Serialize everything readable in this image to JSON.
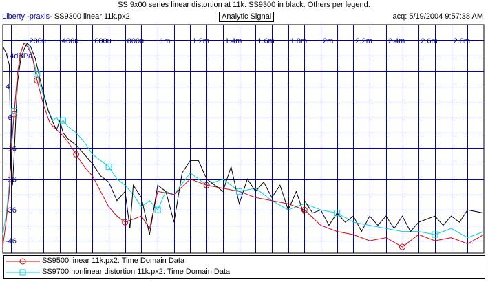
{
  "header": {
    "title": "SS 9x00 series linear distortion at 11k. SS9300 in black. Others per legend.",
    "brand": "Liberty -praxis-",
    "file": "SS9300 linear 11k.px2",
    "mode_button": "Analytic Signal",
    "acquired": "acq: 5/19/2004 9:57:38 AM"
  },
  "colors": {
    "grid": "#0000c0",
    "tick_labels": "#000080",
    "series_black": "#000000",
    "series_red": "#e00000",
    "series_cyan": "#00d0e0"
  },
  "chart_data": {
    "type": "line",
    "title": "",
    "xlabel": "",
    "ylabel": "",
    "xlim": [
      5e-05,
      0.003
    ],
    "ylim": [
      -50,
      24
    ],
    "x_ticks": [
      {
        "v": 0.0002,
        "label": "200u"
      },
      {
        "v": 0.0004,
        "label": "400u"
      },
      {
        "v": 0.0006,
        "label": "600u"
      },
      {
        "v": 0.0008,
        "label": "800u"
      },
      {
        "v": 0.001,
        "label": "1m"
      },
      {
        "v": 0.0012,
        "label": "1.2m"
      },
      {
        "v": 0.0014,
        "label": "1.4m"
      },
      {
        "v": 0.0016,
        "label": "1.6m"
      },
      {
        "v": 0.0018,
        "label": "1.8m"
      },
      {
        "v": 0.002,
        "label": "2m"
      },
      {
        "v": 0.0022,
        "label": "2.2m"
      },
      {
        "v": 0.0024,
        "label": "2.4m"
      },
      {
        "v": 0.0026,
        "label": "2.6m"
      },
      {
        "v": 0.0028,
        "label": "2.8m"
      }
    ],
    "y_ticks": [
      {
        "v": 14,
        "label": "14dBPa"
      },
      {
        "v": 4,
        "label": "4"
      },
      {
        "v": -6,
        "label": "-6"
      },
      {
        "v": -16,
        "label": "-16"
      },
      {
        "v": -26,
        "label": "-26"
      },
      {
        "v": -36,
        "label": "-36"
      },
      {
        "v": -46,
        "label": "-46"
      }
    ],
    "series": [
      {
        "name": "SS9300 linear 11k.px2",
        "color": "#000000",
        "marker": "none",
        "x": [
          5e-05,
          7e-05,
          9e-05,
          0.0001,
          0.00011,
          0.00012,
          0.00013,
          0.00014,
          0.00016,
          0.00018,
          0.0002,
          0.00022,
          0.00025,
          0.00028,
          0.0003,
          0.00033,
          0.00036,
          0.00038,
          0.0004,
          0.00042,
          0.00045,
          0.0005,
          0.00055,
          0.0006,
          0.00065,
          0.0007,
          0.00075,
          0.0008,
          0.00083,
          0.00085,
          0.0009,
          0.00095,
          0.001,
          0.00105,
          0.0011,
          0.00115,
          0.0012,
          0.00125,
          0.0013,
          0.0014,
          0.00145,
          0.0015,
          0.00155,
          0.0016,
          0.00165,
          0.0017,
          0.00175,
          0.0018,
          0.00185,
          0.0019,
          0.0019,
          0.00195,
          0.002,
          0.00205,
          0.0021,
          0.00215,
          0.0022,
          0.00225,
          0.0023,
          0.00235,
          0.0024,
          0.00245,
          0.0025,
          0.00255,
          0.0026,
          0.00265,
          0.0027,
          0.00275,
          0.0028,
          0.00285,
          0.0029,
          0.003
        ],
        "y": [
          17,
          15,
          11,
          -22,
          -28,
          -18,
          -6,
          5,
          13,
          16,
          18,
          17,
          13,
          6,
          2,
          -4,
          -8,
          -10,
          -7,
          -11,
          -13,
          -15,
          -18,
          -21,
          -25,
          -27,
          -33,
          -30,
          -42,
          -28,
          -32,
          -44,
          -28,
          -30,
          -40,
          -24,
          -20,
          -20,
          -26,
          -30,
          -22,
          -34,
          -26,
          -30,
          -27,
          -32,
          -28,
          -36,
          -30,
          -38,
          -33,
          -37,
          -36,
          -41,
          -37,
          -40,
          -38,
          -43,
          -38,
          -41,
          -38,
          -42,
          -38,
          -43,
          -40,
          -39,
          -38,
          -41,
          -38,
          -40,
          -36,
          -37
        ]
      },
      {
        "name": "SS9500 linear 11k.px2:  Time Domain Data",
        "color": "#e00000",
        "marker": "circle",
        "x": [
          5e-05,
          7e-05,
          9e-05,
          0.0001,
          0.00012,
          0.00014,
          0.00016,
          0.00018,
          0.0002,
          0.00023,
          0.00026,
          0.0003,
          0.00034,
          0.00038,
          0.00042,
          0.00045,
          0.0005,
          0.00055,
          0.0006,
          0.00065,
          0.0007,
          0.00075,
          0.0008,
          0.0009,
          0.00095,
          0.001,
          0.0011,
          0.0012,
          0.0013,
          0.0014,
          0.0015,
          0.0016,
          0.0017,
          0.0018,
          0.0019,
          0.002,
          0.0021,
          0.0022,
          0.0023,
          0.0024,
          0.0025,
          0.0026,
          0.0027,
          0.0028,
          0.0029,
          0.003
        ],
        "y": [
          -48,
          -40,
          -30,
          -18,
          -5,
          8,
          15,
          18,
          17,
          14,
          6,
          -2,
          -8,
          -10,
          -12,
          -14,
          -18,
          -22,
          -25,
          -30,
          -35,
          -38,
          -40,
          -38,
          -42,
          -30,
          -31,
          -26,
          -28,
          -29,
          -30,
          -32,
          -33,
          -34,
          -36,
          -41,
          -43,
          -44,
          -46,
          -45,
          -48,
          -44,
          -46,
          -45,
          -47,
          -44
        ]
      },
      {
        "name": "SS9700 nonlinear distortion 11k.px2:  Time Domain Data",
        "color": "#00d0e0",
        "marker": "square",
        "x": [
          5e-05,
          7e-05,
          9e-05,
          0.0001,
          0.00012,
          0.00014,
          0.00016,
          0.00018,
          0.0002,
          0.00023,
          0.00026,
          0.0003,
          0.00033,
          0.00036,
          0.00038,
          0.0004,
          0.00042,
          0.00045,
          0.0005,
          0.00055,
          0.0006,
          0.00065,
          0.0007,
          0.00075,
          0.0008,
          0.00085,
          0.0009,
          0.00095,
          0.001,
          0.00105,
          0.0011,
          0.0012,
          0.0013,
          0.0014,
          0.0015,
          0.0016,
          0.0017,
          0.0018,
          0.0019,
          0.002,
          0.0021,
          0.0022,
          0.0023,
          0.0024,
          0.0025,
          0.0026,
          0.0027,
          0.0028,
          0.0029,
          0.003
        ],
        "y": [
          -44,
          -38,
          -28,
          -16,
          -4,
          8,
          15,
          18,
          18,
          14,
          8,
          1,
          -4,
          -7,
          -6,
          -8,
          -7,
          -9,
          -11,
          -14,
          -18,
          -20,
          -22,
          -26,
          -28,
          -31,
          -35,
          -33,
          -36,
          -30,
          -31,
          -24,
          -28,
          -26,
          -30,
          -29,
          -33,
          -36,
          -34,
          -36,
          -37,
          -40,
          -41,
          -42,
          -43,
          -43,
          -44,
          -42,
          -45,
          -43
        ]
      }
    ],
    "legend_position": "bottom"
  },
  "legend": {
    "items": [
      {
        "label": "SS9500 linear 11k.px2:  Time Domain Data",
        "color": "#e00000",
        "marker": "circle"
      },
      {
        "label": "SS9700 nonlinear distortion 11k.px2:  Time Domain Data",
        "color": "#00d0e0",
        "marker": "square"
      }
    ]
  }
}
